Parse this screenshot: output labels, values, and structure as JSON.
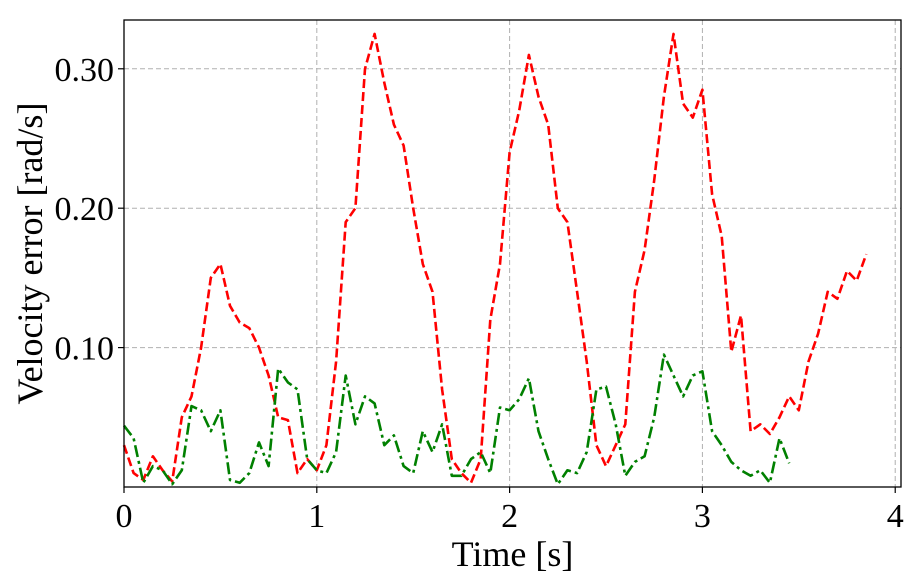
{
  "chart_data": {
    "type": "line",
    "title": "",
    "xlabel": "Time [s]",
    "ylabel": "Velocity error [rad/s]",
    "xlim": [
      0,
      4.03
    ],
    "ylim": [
      0,
      0.335
    ],
    "xticks": [
      0,
      1,
      2,
      3,
      4
    ],
    "xtick_labels": [
      "0",
      "1",
      "2",
      "3",
      "4"
    ],
    "yticks": [
      0.1,
      0.2,
      0.3
    ],
    "ytick_labels": [
      "0.10",
      "0.20",
      "0.30"
    ],
    "grid": true,
    "legend": "none",
    "series": [
      {
        "color": "#ff0000",
        "style": "dashed",
        "x": [
          0,
          0.05,
          0.1,
          0.15,
          0.2,
          0.25,
          0.3,
          0.35,
          0.4,
          0.45,
          0.5,
          0.55,
          0.6,
          0.65,
          0.7,
          0.75,
          0.8,
          0.85,
          0.9,
          0.95,
          1.0,
          1.05,
          1.1,
          1.15,
          1.2,
          1.25,
          1.3,
          1.35,
          1.4,
          1.45,
          1.5,
          1.55,
          1.6,
          1.65,
          1.7,
          1.75,
          1.8,
          1.85,
          1.9,
          1.95,
          2.0,
          2.05,
          2.1,
          2.15,
          2.2,
          2.25,
          2.3,
          2.35,
          2.4,
          2.45,
          2.5,
          2.55,
          2.6,
          2.65,
          2.7,
          2.75,
          2.8,
          2.85,
          2.9,
          2.95,
          3.0,
          3.05,
          3.1,
          3.15,
          3.2,
          3.25,
          3.3,
          3.35,
          3.4,
          3.45,
          3.5,
          3.55,
          3.6,
          3.65,
          3.7,
          3.75,
          3.8,
          3.85
        ],
        "y": [
          0.03,
          0.01,
          0.005,
          0.022,
          0.012,
          0.004,
          0.05,
          0.065,
          0.1,
          0.15,
          0.16,
          0.13,
          0.118,
          0.114,
          0.1,
          0.08,
          0.05,
          0.048,
          0.01,
          0.02,
          0.012,
          0.03,
          0.09,
          0.19,
          0.2,
          0.3,
          0.325,
          0.29,
          0.26,
          0.245,
          0.2,
          0.16,
          0.14,
          0.07,
          0.02,
          0.01,
          0.003,
          0.02,
          0.12,
          0.16,
          0.24,
          0.27,
          0.31,
          0.28,
          0.26,
          0.2,
          0.19,
          0.14,
          0.09,
          0.03,
          0.015,
          0.03,
          0.045,
          0.14,
          0.17,
          0.22,
          0.28,
          0.325,
          0.275,
          0.265,
          0.285,
          0.21,
          0.18,
          0.097,
          0.123,
          0.04,
          0.045,
          0.038,
          0.05,
          0.065,
          0.055,
          0.09,
          0.11,
          0.14,
          0.135,
          0.155,
          0.148,
          0.167
        ]
      },
      {
        "color": "#008000",
        "style": "dashdot",
        "x": [
          0,
          0.05,
          0.1,
          0.15,
          0.2,
          0.25,
          0.3,
          0.35,
          0.4,
          0.45,
          0.5,
          0.55,
          0.6,
          0.65,
          0.7,
          0.75,
          0.8,
          0.85,
          0.9,
          0.95,
          1.0,
          1.05,
          1.1,
          1.15,
          1.2,
          1.25,
          1.3,
          1.35,
          1.4,
          1.45,
          1.5,
          1.55,
          1.6,
          1.65,
          1.7,
          1.75,
          1.8,
          1.85,
          1.9,
          1.95,
          2.0,
          2.05,
          2.1,
          2.15,
          2.2,
          2.25,
          2.3,
          2.35,
          2.4,
          2.45,
          2.5,
          2.55,
          2.6,
          2.65,
          2.7,
          2.75,
          2.8,
          2.85,
          2.9,
          2.95,
          3.0,
          3.05,
          3.1,
          3.15,
          3.2,
          3.25,
          3.3,
          3.35,
          3.4,
          3.45
        ],
        "y": [
          0.044,
          0.035,
          0.003,
          0.015,
          0.012,
          0.002,
          0.012,
          0.058,
          0.055,
          0.04,
          0.055,
          0.005,
          0.003,
          0.01,
          0.032,
          0.015,
          0.085,
          0.075,
          0.07,
          0.02,
          0.012,
          0.01,
          0.025,
          0.08,
          0.045,
          0.065,
          0.06,
          0.03,
          0.037,
          0.015,
          0.01,
          0.04,
          0.025,
          0.045,
          0.008,
          0.008,
          0.02,
          0.025,
          0.01,
          0.057,
          0.055,
          0.063,
          0.078,
          0.04,
          0.02,
          0.002,
          0.012,
          0.01,
          0.025,
          0.07,
          0.072,
          0.045,
          0.008,
          0.018,
          0.022,
          0.05,
          0.095,
          0.08,
          0.065,
          0.08,
          0.083,
          0.04,
          0.03,
          0.018,
          0.012,
          0.008,
          0.012,
          0.003,
          0.035,
          0.017
        ]
      }
    ]
  }
}
